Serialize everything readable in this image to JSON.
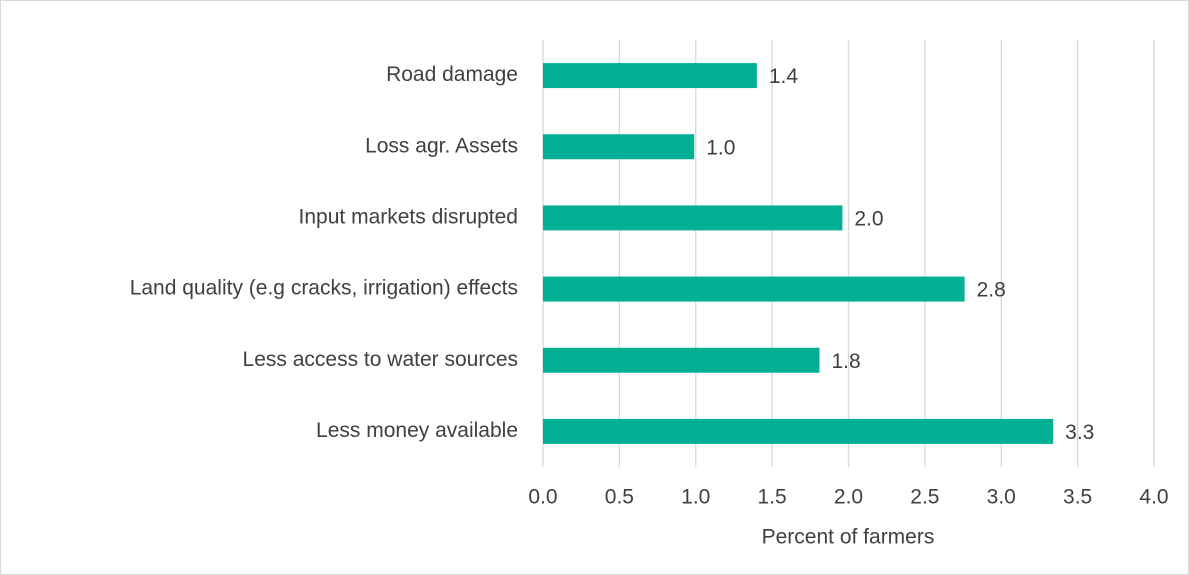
{
  "chart_data": {
    "type": "bar",
    "orientation": "horizontal",
    "x_label": "Percent of farmers",
    "categories": [
      "Road damage",
      "Loss agr. Assets",
      "Input markets disrupted",
      "Land quality (e.g cracks, irrigation) effects",
      "Less access to water sources",
      "Less money available"
    ],
    "values": [
      1.4,
      0.99,
      1.96,
      2.76,
      1.81,
      3.34
    ],
    "value_labels": [
      "1.4",
      "1.0",
      "2.0",
      "2.8",
      "1.8",
      "3.3"
    ],
    "color": "#00af94",
    "xlim": [
      0,
      4
    ],
    "xticks": [
      {
        "value": 0,
        "label": "0.0"
      },
      {
        "value": 0.5,
        "label": "0.5"
      },
      {
        "value": 1,
        "label": "1.0"
      },
      {
        "value": 1.5,
        "label": "1.5"
      },
      {
        "value": 2,
        "label": "2.0"
      },
      {
        "value": 2.5,
        "label": "2.5"
      },
      {
        "value": 3,
        "label": "3.0"
      },
      {
        "value": 3.5,
        "label": "3.5"
      },
      {
        "value": 4,
        "label": "4.0"
      }
    ],
    "grid": true
  }
}
